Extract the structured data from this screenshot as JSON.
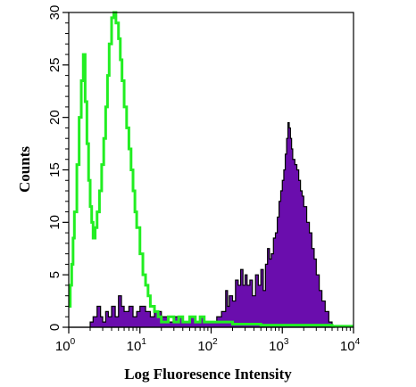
{
  "chart_data": {
    "type": "area",
    "xlabel": "Log Fluoresence Intensity",
    "ylabel": "Counts",
    "x_scale": "log",
    "xlim": [
      1,
      10000
    ],
    "ylim": [
      0,
      30
    ],
    "grid": false,
    "x_ticks": [
      {
        "value": 1,
        "base": "10",
        "exp": "0"
      },
      {
        "value": 10,
        "base": "10",
        "exp": "1"
      },
      {
        "value": 100,
        "base": "10",
        "exp": "2"
      },
      {
        "value": 1000,
        "base": "10",
        "exp": "3"
      },
      {
        "value": 10000,
        "base": "10",
        "exp": "4"
      }
    ],
    "y_ticks": [
      "0",
      "5",
      "10",
      "15",
      "20",
      "25",
      "30"
    ],
    "series": [
      {
        "style": "filled",
        "color": "#6A0DAD",
        "outline_color": "#000000",
        "x": [
          1.0,
          1.6,
          2.0,
          2.2,
          2.5,
          2.8,
          3.0,
          3.3,
          3.6,
          4.0,
          4.5,
          5.0,
          5.5,
          6.0,
          7.0,
          8.0,
          9.0,
          10.0,
          12.0,
          14.0,
          16.0,
          20.0,
          25.0,
          30.0,
          40.0,
          50.0,
          60.0,
          70.0,
          80.0,
          100.0,
          120.0,
          140.0,
          160.0,
          170.0,
          180.0,
          200.0,
          220.0,
          240.0,
          260.0,
          280.0,
          300.0,
          320.0,
          350.0,
          380.0,
          420.0,
          460.0,
          500.0,
          540.0,
          580.0,
          620.0,
          660.0,
          700.0,
          750.0,
          800.0,
          850.0,
          900.0,
          950.0,
          1000.0,
          1050.0,
          1100.0,
          1150.0,
          1200.0,
          1250.0,
          1300.0,
          1350.0,
          1400.0,
          1500.0,
          1600.0,
          1700.0,
          1800.0,
          1900.0,
          2000.0,
          2200.0,
          2400.0,
          2600.0,
          2800.0,
          3000.0,
          3300.0,
          3600.0,
          4000.0,
          4500.0,
          5000.0,
          5500.0
        ],
        "y": [
          0,
          0,
          0.5,
          1.0,
          2.0,
          1.0,
          0.5,
          1.5,
          1.0,
          2.0,
          1.0,
          3.0,
          2.0,
          1.5,
          2.0,
          1.0,
          1.5,
          2.0,
          1.5,
          1.0,
          1.5,
          1.0,
          0.5,
          1.0,
          0.5,
          1.0,
          0.5,
          1.0,
          0.5,
          0.5,
          1.0,
          1.5,
          3.5,
          2.0,
          3.0,
          2.5,
          4.5,
          4.0,
          5.5,
          4.0,
          5.0,
          4.0,
          4.5,
          3.0,
          5.0,
          4.0,
          5.5,
          3.5,
          6.0,
          7.5,
          6.5,
          7.0,
          8.5,
          9.0,
          10.5,
          12.0,
          13.0,
          14.0,
          15.0,
          16.5,
          18.0,
          19.5,
          19.0,
          18.0,
          17.0,
          16.0,
          15.5,
          15.0,
          14.0,
          13.0,
          12.5,
          11.5,
          10.0,
          9.0,
          7.5,
          6.5,
          5.0,
          3.5,
          2.5,
          1.5,
          0.5,
          0,
          0
        ]
      },
      {
        "style": "line",
        "color": "#22EE22",
        "x": [
          1.0,
          1.05,
          1.1,
          1.15,
          1.2,
          1.3,
          1.4,
          1.5,
          1.6,
          1.7,
          1.8,
          1.9,
          2.0,
          2.1,
          2.2,
          2.35,
          2.5,
          2.7,
          2.9,
          3.1,
          3.3,
          3.5,
          3.7,
          4.0,
          4.3,
          4.6,
          5.0,
          5.3,
          5.6,
          6.0,
          6.5,
          7.0,
          7.5,
          8.0,
          8.5,
          9.0,
          10.0,
          11.0,
          12.0,
          13.0,
          14.0,
          16.0,
          18.0,
          20.0,
          25.0,
          30.0,
          35.0,
          40.0,
          50.0,
          60.0,
          70.0,
          80.0,
          100.0,
          120.0,
          140.0,
          170.0,
          200.0,
          300.0,
          500.0,
          1000.0,
          5000.0,
          10000.0
        ],
        "y": [
          2.0,
          4.0,
          6.0,
          8.5,
          11.0,
          15.5,
          20.0,
          23.5,
          26.0,
          21.5,
          17.5,
          14.0,
          11.5,
          10.0,
          8.5,
          9.5,
          11.0,
          13.0,
          15.5,
          18.0,
          21.0,
          24.0,
          27.0,
          29.5,
          30.0,
          29.0,
          27.5,
          25.5,
          23.5,
          21.0,
          19.0,
          17.0,
          15.0,
          13.0,
          11.0,
          9.5,
          7.0,
          5.0,
          4.0,
          3.0,
          2.0,
          1.5,
          1.0,
          0.5,
          1.0,
          0.5,
          1.0,
          0.5,
          1.0,
          0.5,
          1.0,
          0.5,
          0.5,
          0.5,
          0.5,
          0.5,
          0.3,
          0.3,
          0.2,
          0.2,
          0.1,
          0.1
        ]
      }
    ]
  }
}
